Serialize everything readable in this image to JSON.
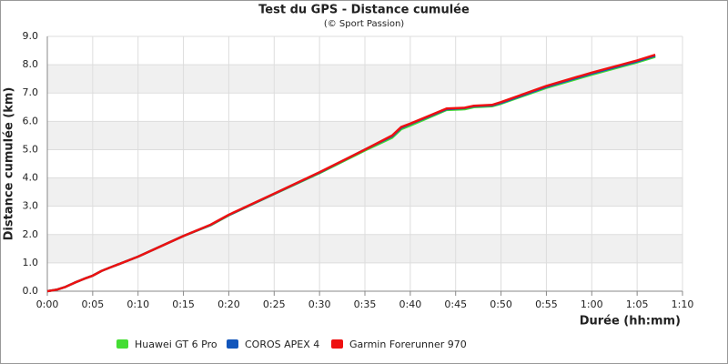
{
  "chart_data": {
    "type": "line",
    "title": "Test du GPS - Distance cumulée",
    "subtitle": "(© Sport Passion)",
    "x_label": "Durée (hh:mm)",
    "y_label": "Distance cumulée (km)",
    "x": [
      0,
      1,
      2,
      3,
      4,
      5,
      6,
      7,
      8,
      10,
      15,
      18,
      20,
      25,
      30,
      35,
      38,
      39,
      40,
      44,
      46,
      47,
      49,
      50,
      55,
      60,
      65,
      67
    ],
    "series": [
      {
        "name": "Huawei GT 6 Pro",
        "color": "#44dd33",
        "values": [
          0,
          0.05,
          0.15,
          0.3,
          0.43,
          0.55,
          0.72,
          0.85,
          0.97,
          1.22,
          1.95,
          2.33,
          2.68,
          3.43,
          4.17,
          4.97,
          5.42,
          5.72,
          5.85,
          6.4,
          6.43,
          6.5,
          6.53,
          6.62,
          7.18,
          7.65,
          8.08,
          8.28
        ]
      },
      {
        "name": "COROS APEX 4",
        "color": "#1155bb",
        "values": [
          0,
          0.05,
          0.15,
          0.3,
          0.43,
          0.55,
          0.72,
          0.85,
          0.97,
          1.22,
          1.95,
          2.34,
          2.69,
          3.44,
          4.19,
          5.0,
          5.47,
          5.77,
          5.9,
          6.43,
          6.47,
          6.53,
          6.56,
          6.65,
          7.22,
          7.69,
          8.12,
          8.32
        ]
      },
      {
        "name": "Garmin Forerunner 970",
        "color": "#ee1111",
        "values": [
          0,
          0.05,
          0.15,
          0.3,
          0.43,
          0.55,
          0.72,
          0.85,
          0.97,
          1.22,
          1.95,
          2.35,
          2.7,
          3.45,
          4.2,
          5.0,
          5.5,
          5.8,
          5.92,
          6.45,
          6.48,
          6.55,
          6.58,
          6.68,
          7.25,
          7.72,
          8.15,
          8.35
        ]
      }
    ],
    "xlim": [
      0,
      70
    ],
    "xticks": [
      {
        "value": 0,
        "label": "0:00"
      },
      {
        "value": 5,
        "label": "0:05"
      },
      {
        "value": 10,
        "label": "0:10"
      },
      {
        "value": 15,
        "label": "0:15"
      },
      {
        "value": 20,
        "label": "0:20"
      },
      {
        "value": 25,
        "label": "0:25"
      },
      {
        "value": 30,
        "label": "0:30"
      },
      {
        "value": 35,
        "label": "0:35"
      },
      {
        "value": 40,
        "label": "0:40"
      },
      {
        "value": 45,
        "label": "0:45"
      },
      {
        "value": 50,
        "label": "0:50"
      },
      {
        "value": 55,
        "label": "0:55"
      },
      {
        "value": 60,
        "label": "1:00"
      },
      {
        "value": 65,
        "label": "1:05"
      },
      {
        "value": 70,
        "label": "1:10"
      }
    ],
    "ylim": [
      0,
      9
    ],
    "yticks": [
      {
        "value": 0,
        "label": "0.0"
      },
      {
        "value": 1,
        "label": "1.0"
      },
      {
        "value": 2,
        "label": "2.0"
      },
      {
        "value": 3,
        "label": "3.0"
      },
      {
        "value": 4,
        "label": "4.0"
      },
      {
        "value": 5,
        "label": "5.0"
      },
      {
        "value": 6,
        "label": "6.0"
      },
      {
        "value": 7,
        "label": "7.0"
      },
      {
        "value": 8,
        "label": "8.0"
      },
      {
        "value": 9,
        "label": "9.0"
      }
    ],
    "grid": true,
    "legend": "bottom"
  }
}
